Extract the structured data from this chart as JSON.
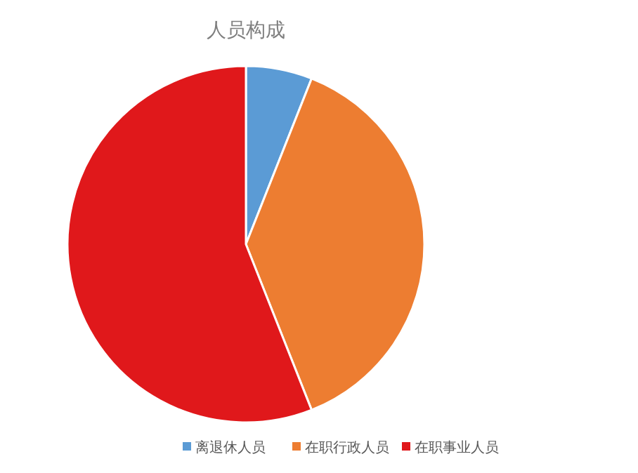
{
  "chart_data": {
    "type": "pie",
    "title": "人员构成",
    "categories": [
      "离退休人员",
      "在职行政人员",
      "在职事业人员"
    ],
    "values": [
      6,
      38,
      56
    ],
    "colors": [
      "#5b9bd5",
      "#ed7d31",
      "#e0181b"
    ],
    "legend": "bottom"
  }
}
